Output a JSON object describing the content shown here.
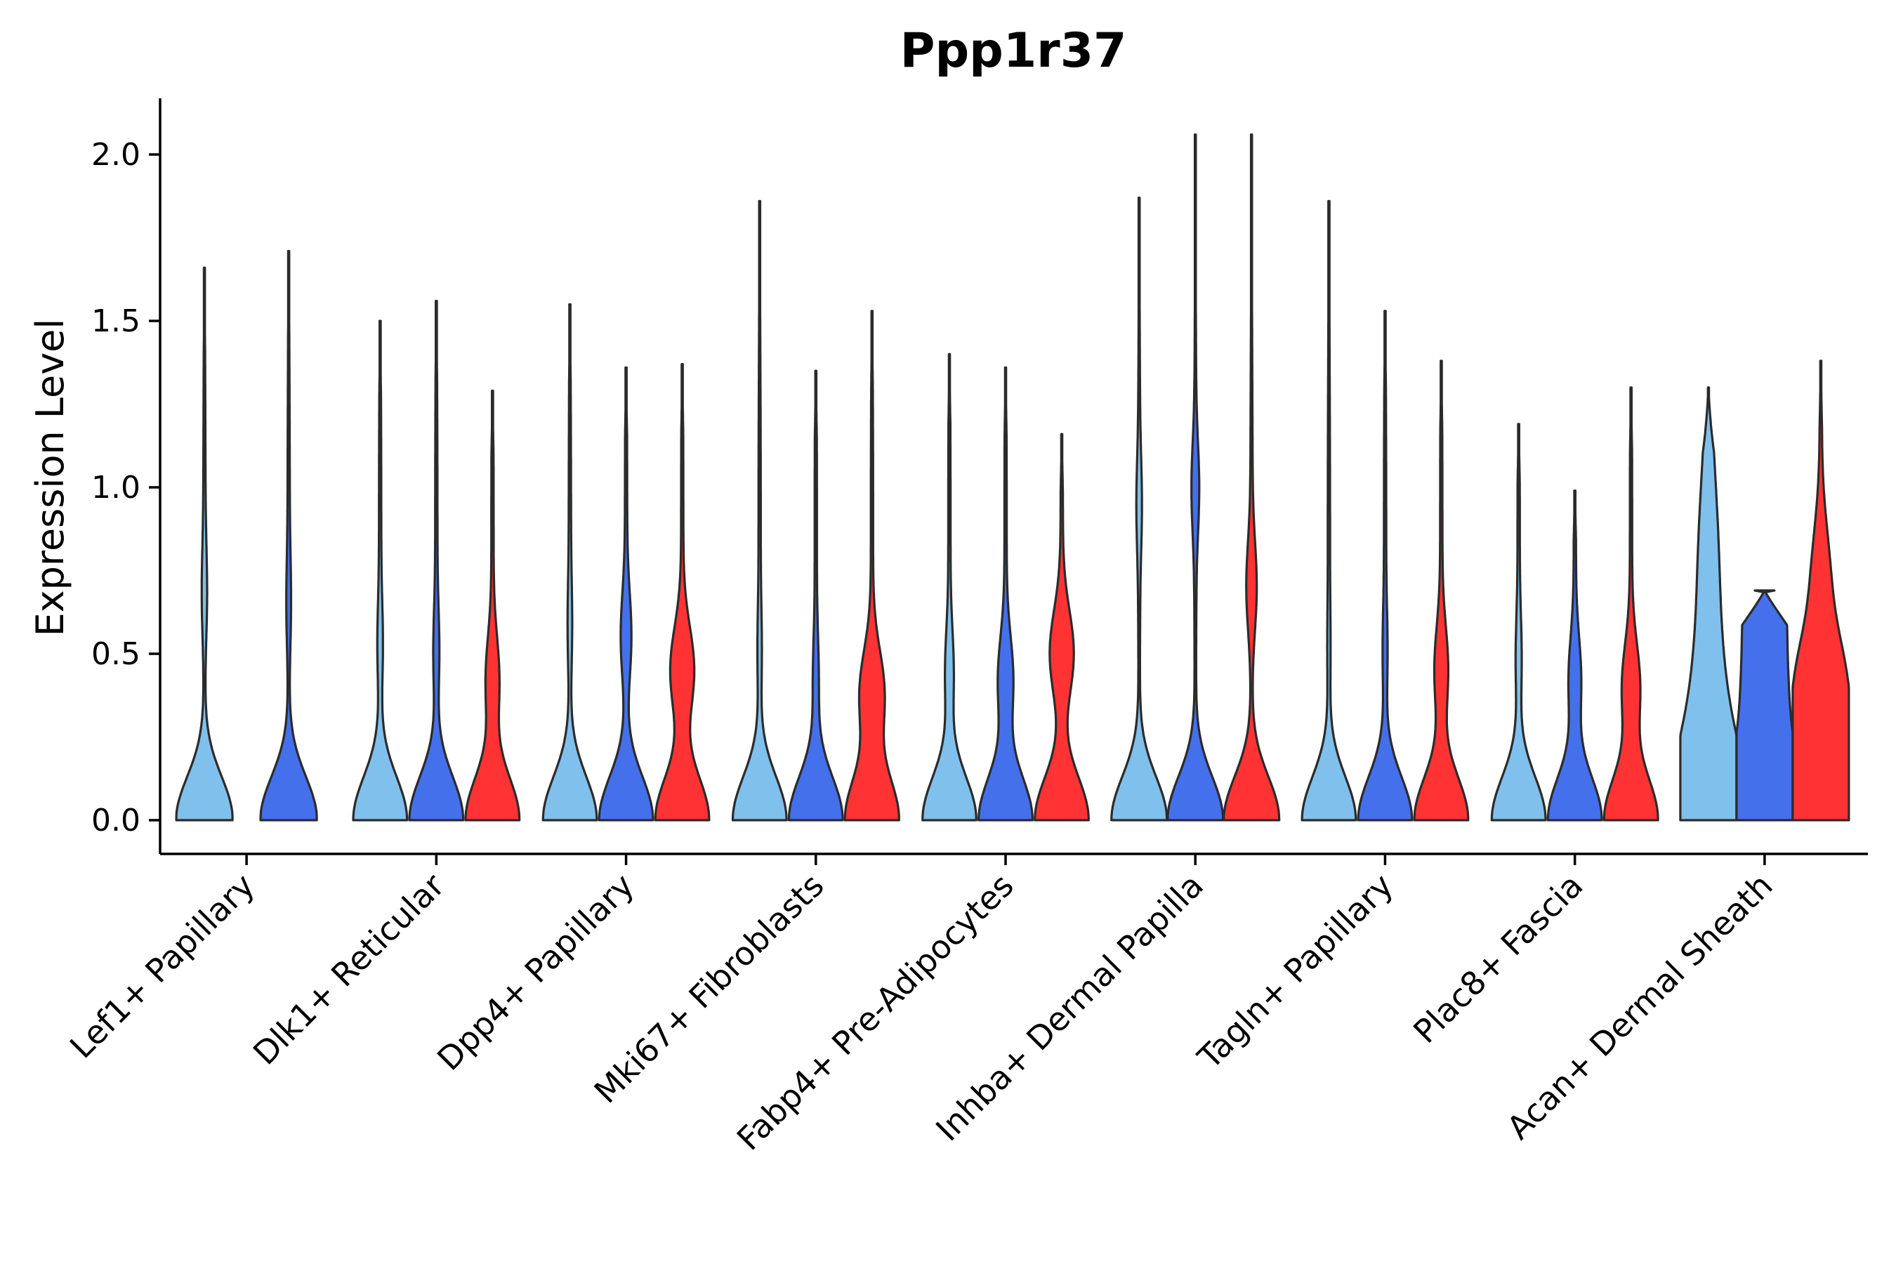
{
  "chart_data": {
    "type": "violin",
    "title": "Ppp1r37",
    "xlabel": "",
    "ylabel": "Expression Level",
    "ylim": [
      -0.1,
      2.15
    ],
    "yticks": [
      "0.0",
      "0.5",
      "1.0",
      "1.5",
      "2.0"
    ],
    "ytick_values": [
      0.0,
      0.5,
      1.0,
      1.5,
      2.0
    ],
    "grid": false,
    "legend": "none",
    "group_colors": [
      "#80C0EC",
      "#4470EC",
      "#FF3333"
    ],
    "categories": [
      "Lef1+ Papillary",
      "Dlk1+ Reticular",
      "Dpp4+ Papillary",
      "Mki67+ Fibroblasts",
      "Fabp4+ Pre-Adipocytes",
      "Inhba+ Dermal Papilla",
      "Tagln+ Papillary",
      "Plac8+ Fascia",
      "Acan+ Dermal Sheath"
    ],
    "violins": [
      {
        "category": 0,
        "group": 0,
        "max": 1.66,
        "mode_hi": 0.68,
        "w_hi": 0.06,
        "w_base": 1.0,
        "shape": "bimodal"
      },
      {
        "category": 0,
        "group": 1,
        "max": 1.71,
        "mode_hi": 0.65,
        "w_hi": 0.05,
        "w_base": 1.0,
        "shape": "bimodal"
      },
      {
        "category": 1,
        "group": 0,
        "max": 1.5,
        "mode_hi": 0.52,
        "w_hi": 0.07,
        "w_base": 0.95,
        "shape": "bimodal"
      },
      {
        "category": 1,
        "group": 1,
        "max": 1.56,
        "mode_hi": 0.5,
        "w_hi": 0.08,
        "w_base": 0.95,
        "shape": "bimodal"
      },
      {
        "category": 1,
        "group": 2,
        "max": 1.29,
        "mode_hi": 0.42,
        "w_hi": 0.22,
        "w_base": 0.95,
        "shape": "bimodal"
      },
      {
        "category": 2,
        "group": 0,
        "max": 1.55,
        "mode_hi": 0.58,
        "w_hi": 0.05,
        "w_base": 0.95,
        "shape": "bimodal"
      },
      {
        "category": 2,
        "group": 1,
        "max": 1.36,
        "mode_hi": 0.55,
        "w_hi": 0.16,
        "w_base": 0.95,
        "shape": "bimodal"
      },
      {
        "category": 2,
        "group": 2,
        "max": 1.37,
        "mode_hi": 0.45,
        "w_hi": 0.4,
        "w_base": 0.95,
        "shape": "bimodal"
      },
      {
        "category": 3,
        "group": 0,
        "max": 1.86,
        "mode_hi": 0.5,
        "w_hi": 0.05,
        "w_base": 0.95,
        "shape": "bimodal"
      },
      {
        "category": 3,
        "group": 1,
        "max": 1.35,
        "mode_hi": 0.42,
        "w_hi": 0.08,
        "w_base": 0.95,
        "shape": "bimodal"
      },
      {
        "category": 3,
        "group": 2,
        "max": 1.53,
        "mode_hi": 0.38,
        "w_hi": 0.42,
        "w_base": 0.95,
        "shape": "bimodal"
      },
      {
        "category": 4,
        "group": 0,
        "max": 1.4,
        "mode_hi": 0.44,
        "w_hi": 0.13,
        "w_base": 0.95,
        "shape": "bimodal"
      },
      {
        "category": 4,
        "group": 1,
        "max": 1.36,
        "mode_hi": 0.42,
        "w_hi": 0.25,
        "w_base": 0.95,
        "shape": "bimodal"
      },
      {
        "category": 4,
        "group": 2,
        "max": 1.16,
        "mode_hi": 0.5,
        "w_hi": 0.4,
        "w_base": 0.95,
        "shape": "bimodal"
      },
      {
        "category": 5,
        "group": 0,
        "max": 1.87,
        "mode_hi": 0.95,
        "w_hi": 0.06,
        "w_base": 0.98,
        "shape": "bimodal"
      },
      {
        "category": 5,
        "group": 1,
        "max": 2.06,
        "mode_hi": 1.0,
        "w_hi": 0.1,
        "w_base": 0.98,
        "shape": "bimodal"
      },
      {
        "category": 5,
        "group": 2,
        "max": 2.06,
        "mode_hi": 0.7,
        "w_hi": 0.15,
        "w_base": 0.98,
        "shape": "bimodal"
      },
      {
        "category": 6,
        "group": 0,
        "max": 1.86,
        "mode_hi": 0.5,
        "w_hi": 0.03,
        "w_base": 0.95,
        "shape": "bimodal"
      },
      {
        "category": 6,
        "group": 1,
        "max": 1.53,
        "mode_hi": 0.5,
        "w_hi": 0.06,
        "w_base": 0.95,
        "shape": "bimodal"
      },
      {
        "category": 6,
        "group": 2,
        "max": 1.38,
        "mode_hi": 0.45,
        "w_hi": 0.22,
        "w_base": 0.95,
        "shape": "bimodal"
      },
      {
        "category": 7,
        "group": 0,
        "max": 1.19,
        "mode_hi": 0.48,
        "w_hi": 0.08,
        "w_base": 0.95,
        "shape": "bimodal"
      },
      {
        "category": 7,
        "group": 1,
        "max": 0.99,
        "mode_hi": 0.42,
        "w_hi": 0.2,
        "w_base": 0.95,
        "shape": "bimodal"
      },
      {
        "category": 7,
        "group": 2,
        "max": 1.3,
        "mode_hi": 0.4,
        "w_hi": 0.3,
        "w_base": 0.95,
        "shape": "bimodal"
      },
      {
        "category": 8,
        "group": 0,
        "max": 1.3,
        "mode_hi": 0.7,
        "w_hi": 0.1,
        "w_base": 0.95,
        "shape": "acan0"
      },
      {
        "category": 8,
        "group": 1,
        "max": 0.69,
        "mode_hi": 0.4,
        "w_hi": 0.7,
        "w_base": 0.95,
        "shape": "acan1"
      },
      {
        "category": 8,
        "group": 2,
        "max": 1.38,
        "mode_hi": 0.38,
        "w_hi": 0.85,
        "w_base": 0.95,
        "shape": "acan2"
      }
    ]
  }
}
